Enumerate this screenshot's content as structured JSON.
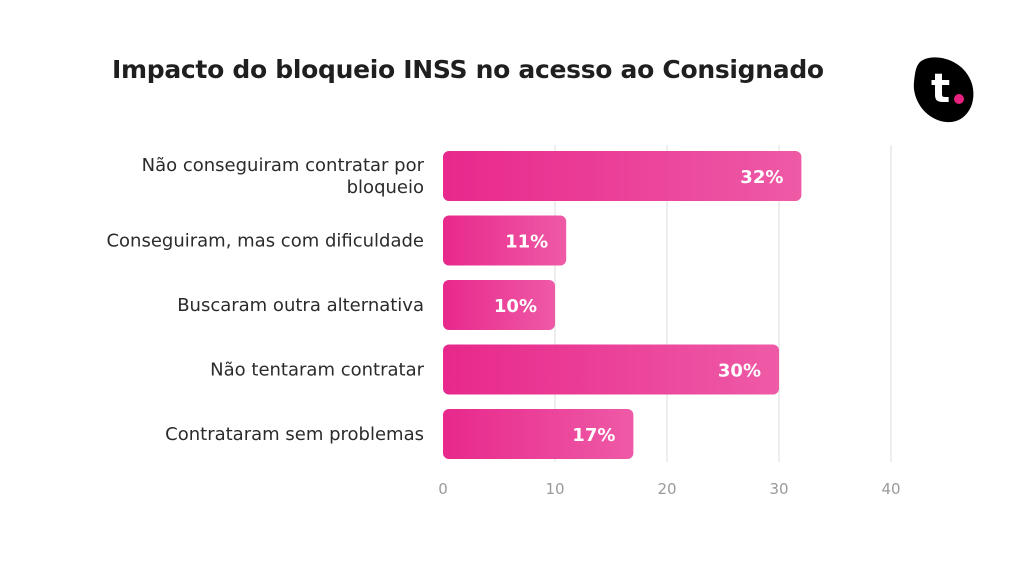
{
  "title": "Impacto do bloqueio INSS no acesso ao Consignado",
  "logo": {
    "letter": "t",
    "icon": "brand-logo-icon",
    "color": "#000000",
    "dot_color": "#e8217f"
  },
  "colors": {
    "bar_start": "#e8288c",
    "bar_end": "#ee5aa6",
    "grid": "#e2e2e2"
  },
  "chart_data": {
    "type": "bar",
    "orientation": "horizontal",
    "title": "Impacto do bloqueio INSS no acesso ao Consignado",
    "categories": [
      [
        "Não conseguiram contratar por",
        "bloqueio"
      ],
      [
        "Conseguiram, mas com dificuldade"
      ],
      [
        "Buscaram outra alternativa"
      ],
      [
        "Não tentaram contratar"
      ],
      [
        "Contrataram sem problemas"
      ]
    ],
    "values": [
      32,
      11,
      10,
      30,
      17
    ],
    "value_labels": [
      "32%",
      "11%",
      "10%",
      "30%",
      "17%"
    ],
    "xlim": [
      0,
      40
    ],
    "xticks": [
      0,
      10,
      20,
      30,
      40
    ],
    "xtick_labels": [
      "0",
      "10",
      "20",
      "30",
      "40"
    ],
    "xlabel": "",
    "ylabel": "",
    "grid": true,
    "legend": "none"
  }
}
